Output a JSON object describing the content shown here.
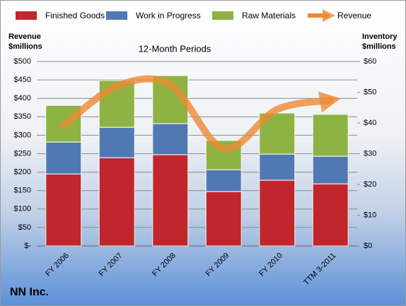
{
  "chart_data": {
    "type": "bar",
    "stacked": true,
    "title": "NN Inc.",
    "subtitle": "12-Month Periods",
    "ylabel": [
      "Revenue",
      "$millions"
    ],
    "y2label": [
      "Inventory",
      "$millions"
    ],
    "categories": [
      "FY 2006",
      "FY 2007",
      "FY 2008",
      "FY 2009",
      "FY 2010",
      "TTM 3-2011"
    ],
    "series": [
      {
        "name": "Finished Goods",
        "color": "#c0262c",
        "axis": "y2",
        "values": [
          23.4,
          28.7,
          29.7,
          17.7,
          21.4,
          20.2
        ]
      },
      {
        "name": "Work in Progress",
        "color": "#5078b3",
        "axis": "y2",
        "values": [
          10.4,
          9.9,
          10.1,
          7.1,
          8.5,
          9.0
        ]
      },
      {
        "name": "Raw Materials",
        "color": "#8db342",
        "axis": "y2",
        "values": [
          11.9,
          15.2,
          15.6,
          9.5,
          13.3,
          13.6
        ]
      },
      {
        "name": "Revenue",
        "color": "#ee8a35",
        "type": "line",
        "values": [
          326,
          433,
          437,
          264,
          370,
          395
        ]
      }
    ],
    "ylim": [
      0,
      500
    ],
    "yticks": [
      {
        "value": 0,
        "label": "$-"
      },
      {
        "value": 50,
        "label": "$50"
      },
      {
        "value": 100,
        "label": "$100"
      },
      {
        "value": 150,
        "label": "$150"
      },
      {
        "value": 200,
        "label": "$200"
      },
      {
        "value": 250,
        "label": "$250"
      },
      {
        "value": 300,
        "label": "$300"
      },
      {
        "value": 350,
        "label": "$350"
      },
      {
        "value": 400,
        "label": "$400"
      },
      {
        "value": 450,
        "label": "$450"
      },
      {
        "value": 500,
        "label": "$500"
      }
    ],
    "y2lim": [
      0,
      60
    ],
    "y2ticks": [
      {
        "value": 0,
        "label": "$0"
      },
      {
        "value": 10,
        "label": "$10"
      },
      {
        "value": 20,
        "label": "$20"
      },
      {
        "value": 30,
        "label": "$30"
      },
      {
        "value": 40,
        "label": "$40"
      },
      {
        "value": 50,
        "label": "$50"
      },
      {
        "value": 60,
        "label": "$60"
      }
    ],
    "grid": true
  }
}
